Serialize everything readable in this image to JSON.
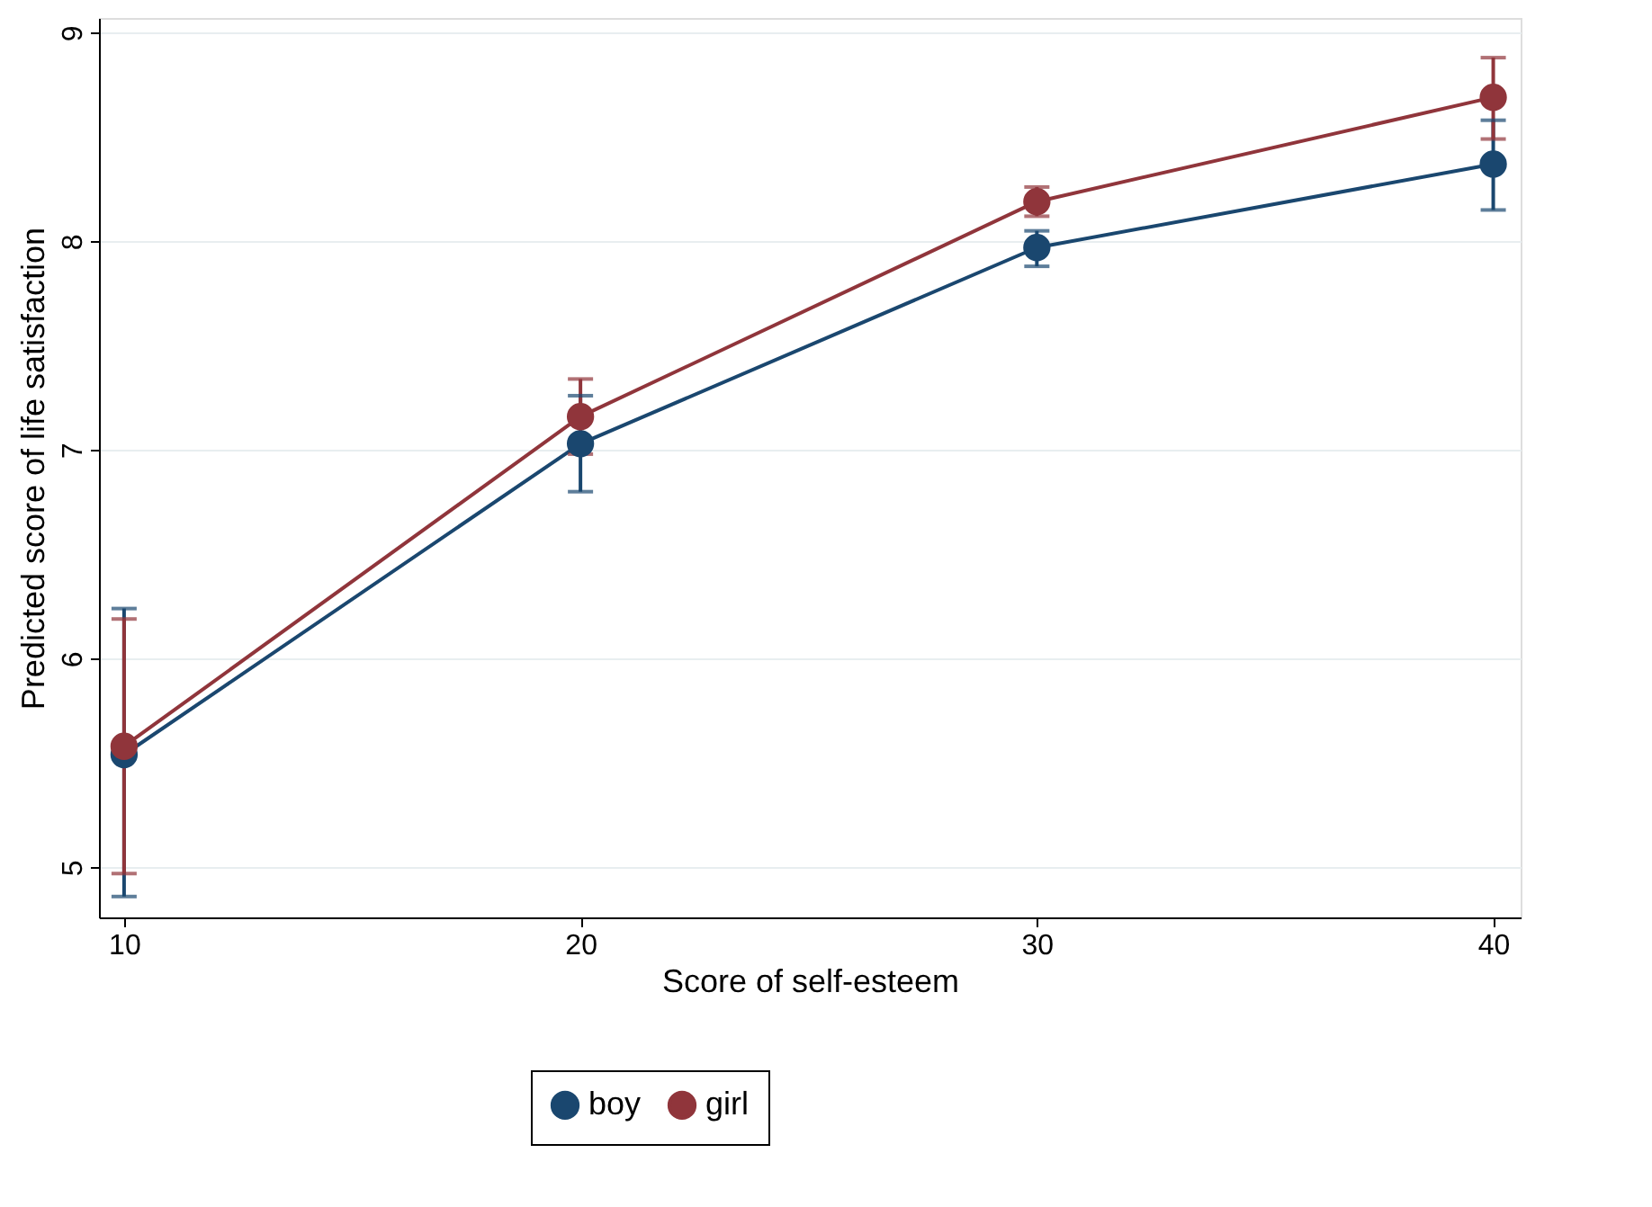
{
  "chart_data": {
    "type": "line",
    "xlabel": "Score of self-esteem",
    "ylabel": "Predicted score of life satisfaction",
    "x": [
      10,
      20,
      30,
      40
    ],
    "series": [
      {
        "name": "boy",
        "color": "#1a476f",
        "values": [
          5.54,
          7.03,
          7.97,
          8.37
        ],
        "errors": [
          [
            4.86,
            6.24
          ],
          [
            6.8,
            7.26
          ],
          [
            7.88,
            8.05
          ],
          [
            8.15,
            8.58
          ]
        ]
      },
      {
        "name": "girl",
        "color": "#90353b",
        "values": [
          5.58,
          7.16,
          8.19,
          8.69
        ],
        "errors": [
          [
            4.97,
            6.19
          ],
          [
            6.98,
            7.34
          ],
          [
            8.12,
            8.26
          ],
          [
            8.49,
            8.88
          ]
        ]
      }
    ],
    "xlim": [
      9.45,
      40.6
    ],
    "xticks": [
      10,
      20,
      30,
      40
    ],
    "ylim": [
      4.76,
      9.07
    ],
    "yticks": [
      5,
      6,
      7,
      8,
      9
    ],
    "grid": "y",
    "legend": "bottom",
    "marker": "circle",
    "line_style": "solid"
  }
}
